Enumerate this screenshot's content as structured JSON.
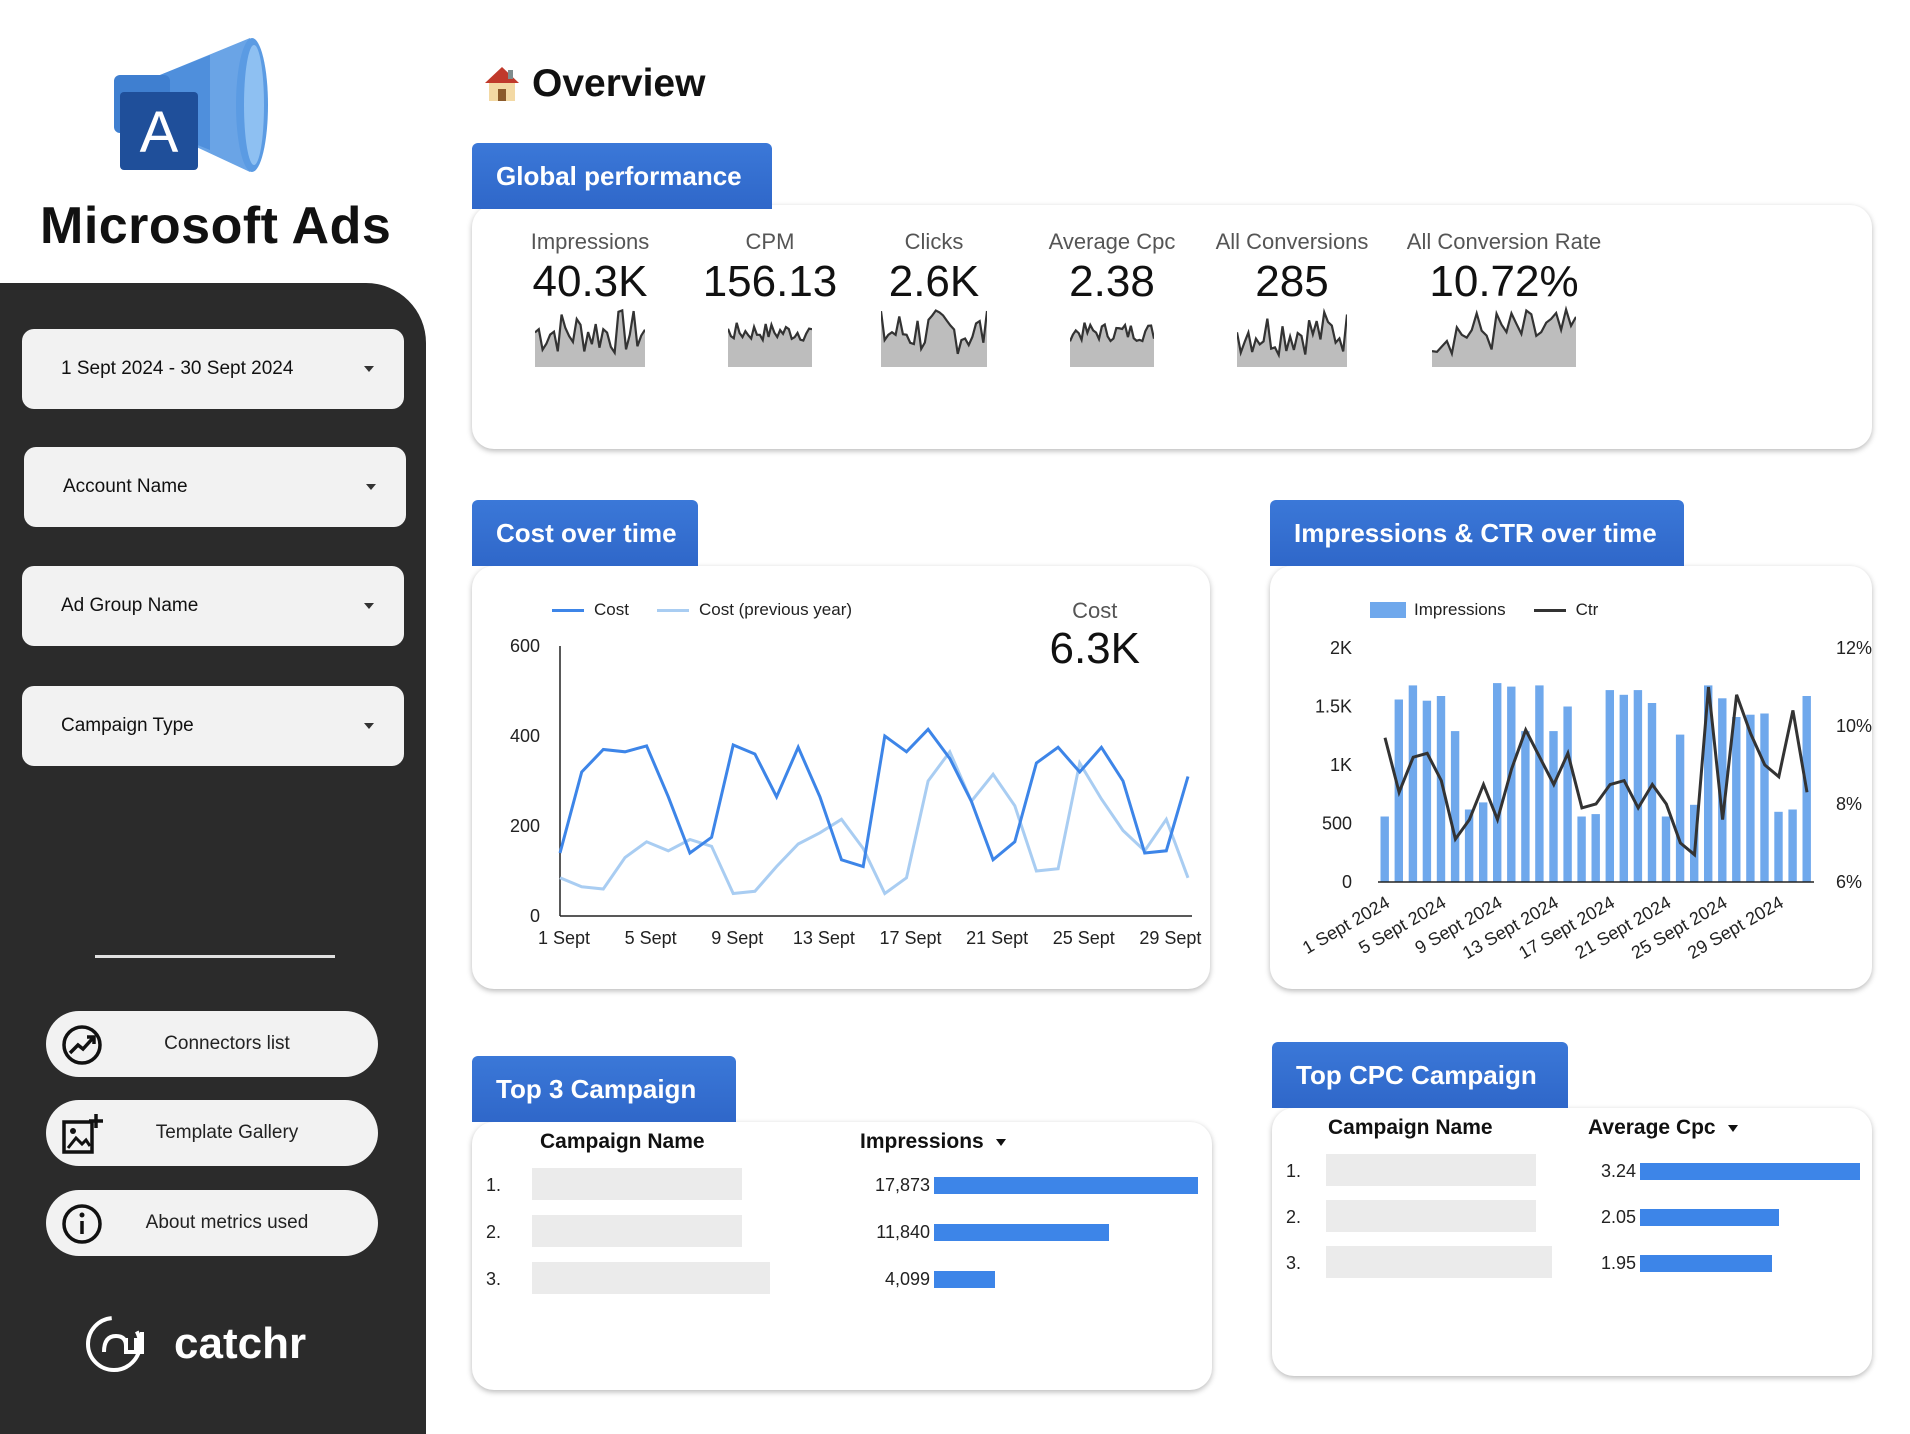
{
  "brand": {
    "name": "Microsoft Ads",
    "logo_letter": "A"
  },
  "filters": [
    {
      "label": "1 Sept 2024 - 30 Sept 2024"
    },
    {
      "label": "Account Name"
    },
    {
      "label": "Ad Group Name"
    },
    {
      "label": "Campaign Type"
    }
  ],
  "sidebar_links": [
    {
      "label": "Connectors list",
      "icon": "connectors-icon"
    },
    {
      "label": "Template Gallery",
      "icon": "gallery-icon"
    },
    {
      "label": "About metrics used",
      "icon": "info-icon"
    }
  ],
  "footer_brand": "catchr",
  "page_title": "Overview",
  "global": {
    "tab": "Global performance",
    "kpis": [
      {
        "label": "Impressions",
        "value": "40.3K"
      },
      {
        "label": "CPM",
        "value": "156.13"
      },
      {
        "label": "Clicks",
        "value": "2.6K"
      },
      {
        "label": "Average Cpc",
        "value": "2.38"
      },
      {
        "label": "All Conversions",
        "value": "285"
      },
      {
        "label": "All Conversion Rate",
        "value": "10.72%"
      }
    ]
  },
  "cost_chart": {
    "tab": "Cost over time",
    "kpi_label": "Cost",
    "kpi_value": "6.3K",
    "legend": [
      "Cost",
      "Cost (previous year)"
    ],
    "colors": {
      "cost": "#3d85e8",
      "prev": "#a9cdf2"
    },
    "chart_data": {
      "type": "line",
      "x": [
        1,
        2,
        3,
        4,
        5,
        6,
        7,
        8,
        9,
        10,
        11,
        12,
        13,
        14,
        15,
        16,
        17,
        18,
        19,
        20,
        21,
        22,
        23,
        24,
        25,
        26,
        27,
        28,
        29,
        30
      ],
      "x_tick_labels": [
        "1 Sept",
        "5 Sept",
        "9 Sept",
        "13 Sept",
        "17 Sept",
        "21 Sept",
        "25 Sept",
        "29 Sept"
      ],
      "x_ticks": [
        1,
        5,
        9,
        13,
        17,
        21,
        25,
        29
      ],
      "ylim": [
        0,
        600
      ],
      "y_ticks": [
        0,
        200,
        400,
        600
      ],
      "series": [
        {
          "name": "Cost",
          "values": [
            140,
            320,
            370,
            365,
            378,
            265,
            140,
            175,
            380,
            360,
            265,
            375,
            265,
            125,
            110,
            400,
            365,
            415,
            350,
            255,
            125,
            165,
            340,
            375,
            320,
            375,
            300,
            140,
            145,
            310
          ]
        },
        {
          "name": "Cost (previous year)",
          "values": [
            85,
            65,
            60,
            130,
            165,
            145,
            170,
            155,
            50,
            55,
            110,
            160,
            185,
            215,
            150,
            50,
            85,
            300,
            365,
            255,
            315,
            245,
            100,
            105,
            340,
            260,
            190,
            145,
            215,
            85
          ]
        }
      ]
    }
  },
  "imp_chart": {
    "tab": "Impressions & CTR over time",
    "legend": [
      "Impressions",
      "Ctr"
    ],
    "colors": {
      "impressions": "#6fa8ec",
      "ctr": "#333333"
    },
    "chart_data": {
      "type": "bar",
      "x_tick_labels": [
        "1 Sept 2024",
        "5 Sept 2024",
        "9 Sept 2024",
        "13 Sept 2024",
        "17 Sept 2024",
        "21 Sept 2024",
        "25 Sept 2024",
        "29 Sept 2024"
      ],
      "x_ticks": [
        1,
        5,
        9,
        13,
        17,
        21,
        25,
        29
      ],
      "y_left": {
        "lim": [
          0,
          2000
        ],
        "ticks": [
          0,
          500,
          1000,
          1500,
          2000
        ],
        "tick_labels": [
          "0",
          "500",
          "1K",
          "1.5K",
          "2K"
        ]
      },
      "y_right": {
        "lim": [
          6,
          12
        ],
        "ticks": [
          6,
          8,
          10,
          12
        ],
        "tick_labels": [
          "6%",
          "8%",
          "10%",
          "12%"
        ]
      },
      "series": [
        {
          "name": "Impressions",
          "axis": "left",
          "values": [
            560,
            1560,
            1680,
            1550,
            1590,
            1290,
            620,
            680,
            1700,
            1670,
            1290,
            1680,
            1290,
            1500,
            560,
            580,
            1640,
            1600,
            1640,
            1530,
            560,
            1260,
            660,
            1680,
            1570,
            1410,
            1430,
            1440,
            600,
            620,
            1590
          ]
        },
        {
          "name": "Ctr",
          "axis": "right",
          "values": [
            9.7,
            8.3,
            9.2,
            9.3,
            8.6,
            7.1,
            7.6,
            8.5,
            7.6,
            8.9,
            9.9,
            9.2,
            8.5,
            9.3,
            7.9,
            8.0,
            8.5,
            8.6,
            7.9,
            8.5,
            8.0,
            7.0,
            6.7,
            11.0,
            7.6,
            10.8,
            9.8,
            9.0,
            8.7,
            10.4,
            8.3
          ]
        }
      ]
    }
  },
  "top3": {
    "tab": "Top 3 Campaign",
    "col_name": "Campaign Name",
    "col_metric": "Impressions",
    "rows": [
      {
        "rank": "1.",
        "value": "17,873",
        "num": 17873
      },
      {
        "rank": "2.",
        "value": "11,840",
        "num": 11840
      },
      {
        "rank": "3.",
        "value": "4,099",
        "num": 4099
      }
    ]
  },
  "topcpc": {
    "tab": "Top CPC Campaign",
    "col_name": "Campaign Name",
    "col_metric": "Average Cpc",
    "rows": [
      {
        "rank": "1.",
        "value": "3.24",
        "num": 3.24
      },
      {
        "rank": "2.",
        "value": "2.05",
        "num": 2.05
      },
      {
        "rank": "3.",
        "value": "1.95",
        "num": 1.95
      }
    ]
  }
}
